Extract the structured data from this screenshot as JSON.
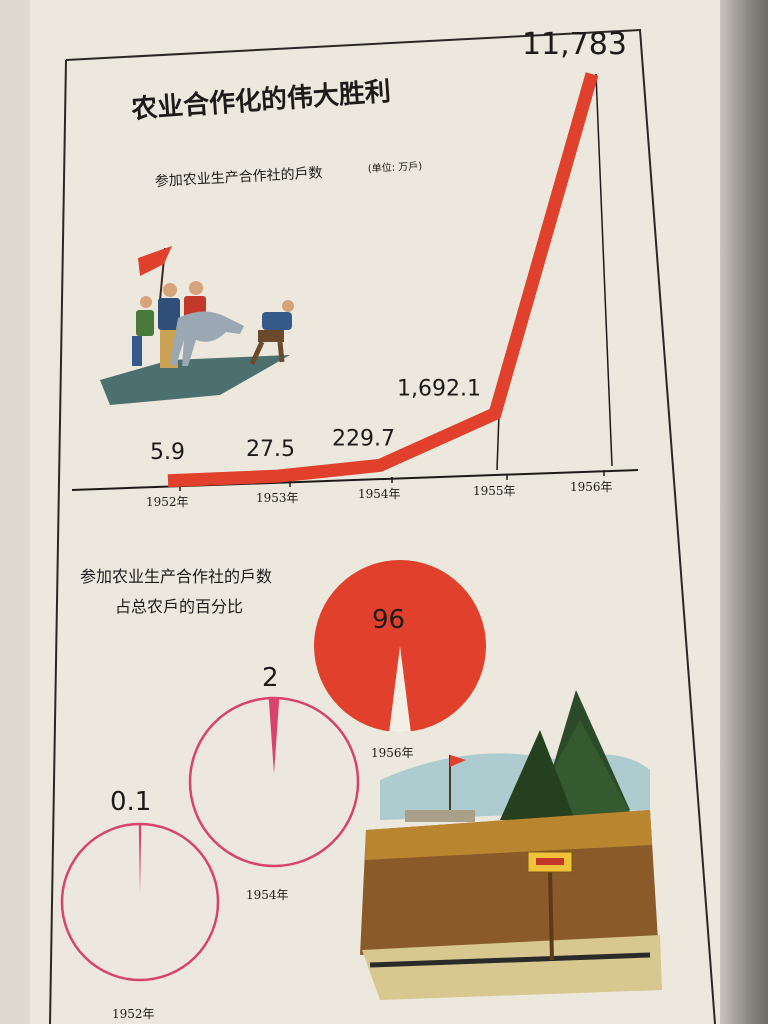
{
  "title": "农业合作化的伟大胜利",
  "colors": {
    "accent": "#e0402c",
    "ring": "#d9436a",
    "ink": "#1c1b1a",
    "paper": "#ece8de"
  },
  "chart_data": [
    {
      "type": "line",
      "subtitle": "参加农业生产合作社的戶数",
      "unit": "(单位: 万戶)",
      "categories": [
        "1952年",
        "1953年",
        "1954年",
        "1955年",
        "1956年"
      ],
      "values": [
        5.9,
        27.5,
        229.7,
        1692.1,
        11783
      ],
      "value_labels": [
        "5.9",
        "27.5",
        "229.7",
        "1,692.1",
        "11,783"
      ],
      "ylim": [
        0,
        11783
      ],
      "grid": false
    },
    {
      "type": "pie",
      "subtitle_lines": [
        "参加农业生产合作社的戶数",
        "占总农戶的百分比"
      ],
      "items": [
        {
          "label": "1952年",
          "percent": 0.1,
          "value_label": "0.1"
        },
        {
          "label": "1954年",
          "percent": 2,
          "value_label": "2"
        },
        {
          "label": "1956年",
          "percent": 96,
          "value_label": "96"
        }
      ]
    }
  ],
  "illustrations": {
    "left": "peasants-with-red-flag-and-ox-icon",
    "right": "farm-field-with-trees-and-sign-icon"
  }
}
